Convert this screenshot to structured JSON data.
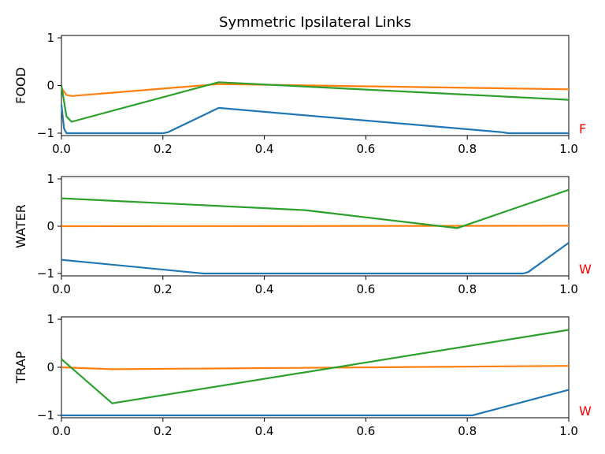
{
  "chart_data": [
    {
      "type": "line",
      "title": "Symmetric Ipsilateral Links",
      "ylabel": "FOOD",
      "side_label": "F",
      "xlim": [
        0,
        1
      ],
      "ylim": [
        -1.05,
        1.05
      ],
      "xticks": [
        "0.0",
        "0.2",
        "0.4",
        "0.6",
        "0.8",
        "1.0"
      ],
      "yticks": [
        "−1",
        "0",
        "1"
      ],
      "series": [
        {
          "color": "#1f77b4",
          "x": [
            0,
            0.005,
            0.01,
            0.2,
            0.21,
            0.31,
            0.87,
            0.88,
            1.0
          ],
          "y": [
            -0.4,
            -0.9,
            -1.0,
            -1.0,
            -0.98,
            -0.47,
            -0.98,
            -1.0,
            -1.0
          ]
        },
        {
          "color": "#ff7f0e",
          "x": [
            0,
            0.01,
            0.02,
            0.31,
            1.0
          ],
          "y": [
            -0.05,
            -0.2,
            -0.22,
            0.03,
            -0.08
          ]
        },
        {
          "color": "#2ca02c",
          "x": [
            0,
            0.01,
            0.02,
            0.31,
            1.0
          ],
          "y": [
            0.0,
            -0.65,
            -0.76,
            0.07,
            -0.3
          ]
        }
      ]
    },
    {
      "type": "line",
      "ylabel": "WATER",
      "side_label": "W",
      "xlim": [
        0,
        1
      ],
      "ylim": [
        -1.05,
        1.05
      ],
      "xticks": [
        "0.0",
        "0.2",
        "0.4",
        "0.6",
        "0.8",
        "1.0"
      ],
      "yticks": [
        "−1",
        "0",
        "1"
      ],
      "series": [
        {
          "color": "#1f77b4",
          "x": [
            0,
            0.28,
            0.91,
            0.92,
            1.0
          ],
          "y": [
            -0.71,
            -1.0,
            -1.0,
            -0.97,
            -0.35
          ]
        },
        {
          "color": "#ff7f0e",
          "x": [
            0,
            1.0
          ],
          "y": [
            0.0,
            0.01
          ]
        },
        {
          "color": "#2ca02c",
          "x": [
            0,
            0.48,
            0.78,
            1.0
          ],
          "y": [
            0.59,
            0.34,
            -0.04,
            0.77
          ]
        }
      ]
    },
    {
      "type": "line",
      "ylabel": "TRAP",
      "side_label": "W",
      "xlim": [
        0,
        1
      ],
      "ylim": [
        -1.05,
        1.05
      ],
      "xticks": [
        "0.0",
        "0.2",
        "0.4",
        "0.6",
        "0.8",
        "1.0"
      ],
      "yticks": [
        "−1",
        "0",
        "1"
      ],
      "series": [
        {
          "color": "#1f77b4",
          "x": [
            0,
            0.81,
            1.0
          ],
          "y": [
            -1.0,
            -1.0,
            -0.47
          ]
        },
        {
          "color": "#ff7f0e",
          "x": [
            0,
            0.1,
            1.0
          ],
          "y": [
            0.0,
            -0.04,
            0.03
          ]
        },
        {
          "color": "#2ca02c",
          "x": [
            0,
            0.1,
            1.0
          ],
          "y": [
            0.17,
            -0.75,
            0.78
          ]
        }
      ]
    }
  ],
  "side_label_color": "#ff0000"
}
